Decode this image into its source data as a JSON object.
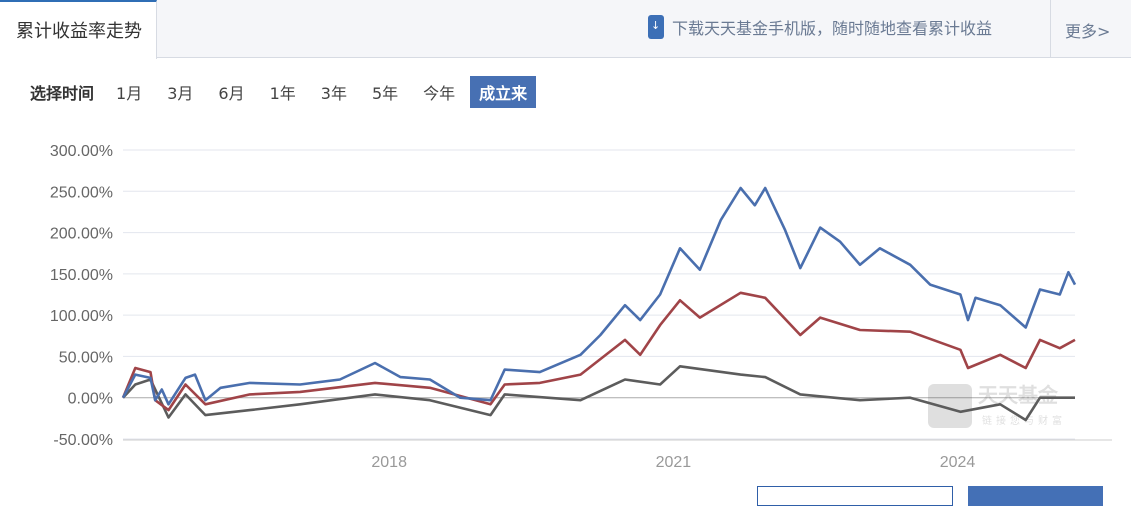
{
  "tabs": {
    "active": "累计收益率走势",
    "promo": "下载天天基金手机版，随时随地查看累计收益",
    "more": "更多>"
  },
  "time_select": {
    "label": "选择时间",
    "options": [
      "1月",
      "3月",
      "6月",
      "1年",
      "3年",
      "5年",
      "今年",
      "成立来"
    ],
    "selected": "成立来"
  },
  "colors": {
    "accent": "#4770b3"
  },
  "watermark": "天天基金 链接您与财富",
  "chart_data": {
    "type": "line",
    "ylim": [
      -50,
      300
    ],
    "yticks": [
      "300.00%",
      "250.00%",
      "200.00%",
      "150.00%",
      "100.00%",
      "50.00%",
      "0.00%",
      "-50.00%"
    ],
    "ytick_values": [
      300,
      250,
      200,
      150,
      100,
      50,
      0,
      -50
    ],
    "xlim": [
      2015.19,
      2025.24
    ],
    "xticks": [
      "2018",
      "2021",
      "2024"
    ],
    "xtick_values": [
      2018,
      2021,
      2024
    ],
    "grid": true,
    "series": [
      {
        "color": "#4a6fae",
        "x": [
          2015.19,
          2015.32,
          2015.48,
          2015.53,
          2015.6,
          2015.67,
          2015.85,
          2015.95,
          2016.06,
          2016.22,
          2016.53,
          2017.06,
          2017.48,
          2017.85,
          2018.12,
          2018.43,
          2018.75,
          2019.07,
          2019.22,
          2019.59,
          2020.02,
          2020.23,
          2020.49,
          2020.65,
          2020.86,
          2021.07,
          2021.28,
          2021.5,
          2021.71,
          2021.86,
          2021.97,
          2022.18,
          2022.34,
          2022.55,
          2022.76,
          2022.97,
          2023.18,
          2023.5,
          2023.71,
          2024.03,
          2024.11,
          2024.19,
          2024.45,
          2024.72,
          2024.87,
          2025.08,
          2025.17,
          2025.24
        ],
        "y": [
          0,
          28,
          24,
          -3,
          10,
          -8,
          24,
          28,
          -3,
          12,
          18,
          16,
          22,
          42,
          25,
          22,
          0,
          -3,
          34,
          31,
          52,
          76,
          112,
          94,
          125,
          181,
          155,
          215,
          254,
          233,
          254,
          203,
          157,
          206,
          189,
          161,
          181,
          161,
          137,
          125,
          94,
          121,
          112,
          85,
          131,
          125,
          152,
          137
        ]
      },
      {
        "color": "#a04448",
        "x": [
          2015.19,
          2015.32,
          2015.48,
          2015.53,
          2015.67,
          2015.85,
          2016.06,
          2016.53,
          2017.06,
          2017.85,
          2018.43,
          2019.07,
          2019.22,
          2019.59,
          2020.02,
          2020.49,
          2020.65,
          2020.86,
          2021.07,
          2021.28,
          2021.71,
          2021.97,
          2022.34,
          2022.55,
          2022.97,
          2023.5,
          2024.03,
          2024.11,
          2024.45,
          2024.72,
          2024.87,
          2025.08,
          2025.24
        ],
        "y": [
          0,
          36,
          31,
          -3,
          -15,
          16,
          -8,
          4,
          7,
          18,
          12,
          -8,
          16,
          18,
          28,
          70,
          52,
          88,
          118,
          97,
          127,
          121,
          76,
          97,
          82,
          80,
          58,
          36,
          52,
          36,
          70,
          60,
          70
        ]
      },
      {
        "color": "#5c5c5c",
        "x": [
          2015.19,
          2015.32,
          2015.48,
          2015.67,
          2015.85,
          2016.06,
          2016.53,
          2017.06,
          2017.85,
          2018.43,
          2019.07,
          2019.22,
          2020.02,
          2020.49,
          2020.86,
          2021.07,
          2021.71,
          2021.97,
          2022.34,
          2022.97,
          2023.5,
          2024.03,
          2024.45,
          2024.72,
          2024.87,
          2025.24
        ],
        "y": [
          0,
          16,
          22,
          -24,
          4,
          -21,
          -15,
          -8,
          4,
          -3,
          -21,
          4,
          -3,
          22,
          16,
          38,
          28,
          25,
          4,
          -3,
          0,
          -17,
          -8,
          -27,
          0,
          0
        ]
      }
    ]
  }
}
